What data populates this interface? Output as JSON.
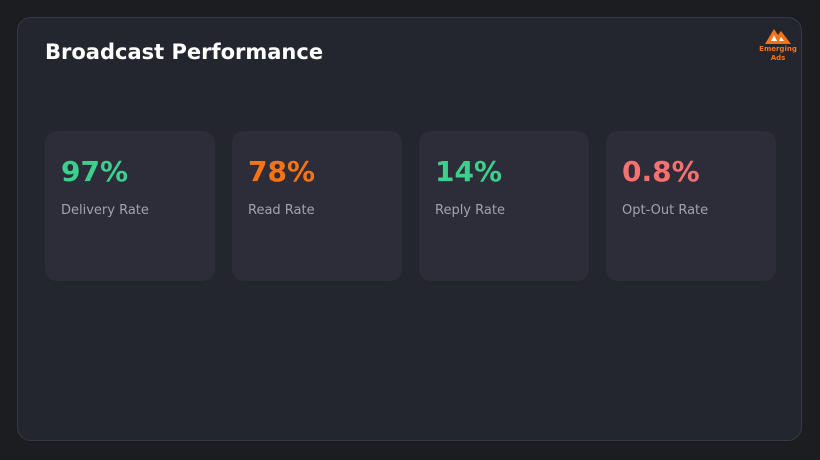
{
  "header": {
    "title": "Broadcast Performance"
  },
  "logo": {
    "line1": "Emerging",
    "line2": "Ads"
  },
  "cards": [
    {
      "value": "97%",
      "label": "Delivery Rate",
      "color": "#3ecf8e"
    },
    {
      "value": "78%",
      "label": "Read Rate",
      "color": "#f97316"
    },
    {
      "value": "14%",
      "label": "Reply Rate",
      "color": "#3ecf8e"
    },
    {
      "value": "0.8%",
      "label": "Opt-Out Rate",
      "color": "#f87171"
    }
  ]
}
